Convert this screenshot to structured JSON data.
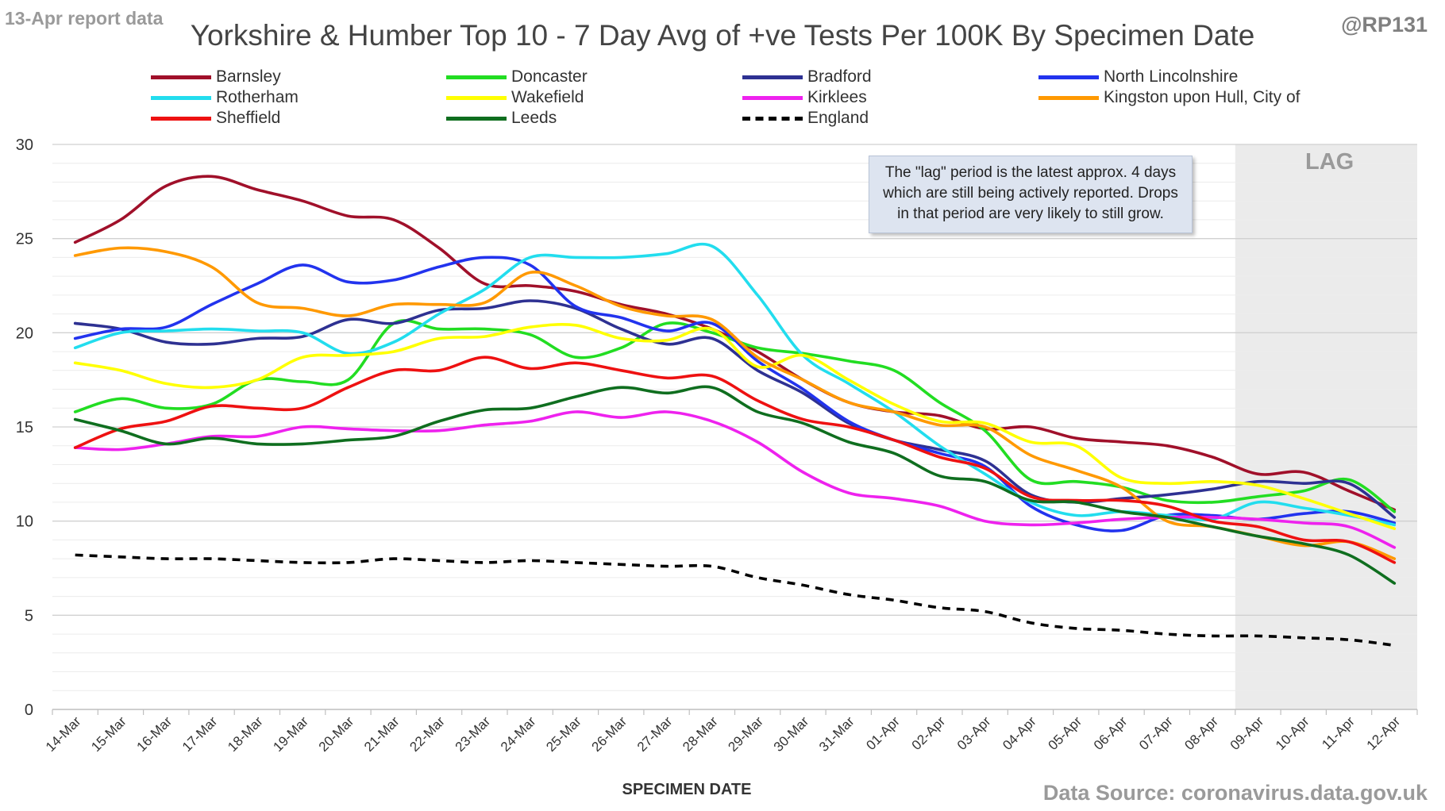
{
  "header": {
    "report_tag": "13-Apr report data",
    "title": "Yorkshire & Humber Top 10 - 7 Day Avg of +ve Tests Per 100K By Specimen Date",
    "author": "@RP131"
  },
  "footer": {
    "source": "Data Source: coronavirus.data.gov.uk"
  },
  "annotation": {
    "note": "The \"lag\" period is the latest approx. 4 days which are still being actively reported. Drops in that period are very likely to still grow.",
    "lag_label": "LAG"
  },
  "colors": {
    "background": "#ffffff",
    "grid": "#d9d9d9",
    "lag_region": "#ebebeb",
    "axis_text": "#333333"
  },
  "chart_data": {
    "type": "line",
    "title": "Yorkshire & Humber Top 10 - 7 Day Avg of +ve Tests Per 100K By Specimen Date",
    "xlabel": "SPECIMEN DATE",
    "ylabel": "",
    "ylim": [
      0,
      30
    ],
    "yticks": [
      0,
      5,
      10,
      15,
      20,
      25,
      30
    ],
    "grid": true,
    "legend_position": "top",
    "lag_region": [
      "09-Apr",
      "12-Apr"
    ],
    "categories": [
      "14-Mar",
      "15-Mar",
      "16-Mar",
      "17-Mar",
      "18-Mar",
      "19-Mar",
      "20-Mar",
      "21-Mar",
      "22-Mar",
      "23-Mar",
      "24-Mar",
      "25-Mar",
      "26-Mar",
      "27-Mar",
      "28-Mar",
      "29-Mar",
      "30-Mar",
      "31-Mar",
      "01-Apr",
      "02-Apr",
      "03-Apr",
      "04-Apr",
      "05-Apr",
      "06-Apr",
      "07-Apr",
      "08-Apr",
      "09-Apr",
      "10-Apr",
      "11-Apr",
      "12-Apr"
    ],
    "series": [
      {
        "name": "Barnsley",
        "color": "#a0102a",
        "dash": false,
        "values": [
          24.8,
          26.0,
          27.8,
          28.3,
          27.6,
          27.0,
          26.2,
          26.0,
          24.5,
          22.6,
          22.5,
          22.2,
          21.5,
          21.0,
          20.2,
          19.0,
          17.5,
          16.3,
          15.8,
          15.6,
          14.9,
          15.0,
          14.4,
          14.2,
          14.0,
          13.4,
          12.5,
          12.6,
          11.6,
          10.6
        ]
      },
      {
        "name": "Doncaster",
        "color": "#22dd22",
        "dash": false,
        "values": [
          15.8,
          16.5,
          16.0,
          16.2,
          17.5,
          17.4,
          17.5,
          20.5,
          20.2,
          20.2,
          19.9,
          18.7,
          19.2,
          20.5,
          20.0,
          19.2,
          18.9,
          18.5,
          18.0,
          16.3,
          14.8,
          12.2,
          12.1,
          11.8,
          11.1,
          11.0,
          11.3,
          11.6,
          12.2,
          10.5
        ]
      },
      {
        "name": "Bradford",
        "color": "#2e3192",
        "dash": false,
        "values": [
          20.5,
          20.2,
          19.5,
          19.4,
          19.7,
          19.8,
          20.7,
          20.5,
          21.2,
          21.3,
          21.7,
          21.3,
          20.2,
          19.4,
          19.7,
          18.0,
          16.8,
          15.2,
          14.3,
          13.8,
          13.2,
          11.4,
          11.0,
          11.2,
          11.4,
          11.7,
          12.1,
          12.0,
          12.0,
          10.2
        ]
      },
      {
        "name": "North Lincolnshire",
        "color": "#2233ee",
        "dash": false,
        "values": [
          19.7,
          20.2,
          20.3,
          21.5,
          22.6,
          23.6,
          22.7,
          22.8,
          23.5,
          24.0,
          23.6,
          21.4,
          20.8,
          20.1,
          20.5,
          18.5,
          17.0,
          15.3,
          14.3,
          13.6,
          12.9,
          10.8,
          9.8,
          9.5,
          10.3,
          10.3,
          10.1,
          10.4,
          10.5,
          9.9
        ]
      },
      {
        "name": "Rotherham",
        "color": "#22ddee",
        "dash": false,
        "values": [
          19.2,
          20.0,
          20.1,
          20.2,
          20.1,
          20.0,
          18.9,
          19.5,
          21.0,
          22.3,
          24.0,
          24.0,
          24.0,
          24.2,
          24.6,
          22.0,
          18.8,
          17.3,
          15.8,
          14.0,
          12.5,
          11.0,
          10.3,
          10.5,
          10.3,
          10.1,
          11.0,
          10.7,
          10.3,
          9.8
        ]
      },
      {
        "name": "Wakefield",
        "color": "#ffff00",
        "dash": false,
        "values": [
          18.4,
          18.0,
          17.3,
          17.1,
          17.5,
          18.7,
          18.8,
          19.0,
          19.7,
          19.8,
          20.3,
          20.4,
          19.7,
          19.6,
          20.2,
          18.2,
          18.8,
          17.5,
          16.2,
          15.3,
          15.2,
          14.2,
          14.0,
          12.3,
          12.0,
          12.1,
          11.9,
          11.2,
          10.4,
          9.6
        ]
      },
      {
        "name": "Kirklees",
        "color": "#ee22ee",
        "dash": false,
        "values": [
          13.9,
          13.8,
          14.1,
          14.5,
          14.5,
          15.0,
          14.9,
          14.8,
          14.8,
          15.1,
          15.3,
          15.8,
          15.5,
          15.8,
          15.3,
          14.2,
          12.6,
          11.5,
          11.2,
          10.8,
          10.0,
          9.8,
          9.9,
          10.1,
          10.2,
          10.2,
          10.1,
          9.9,
          9.7,
          8.6
        ]
      },
      {
        "name": "Kingston upon Hull, City of",
        "color": "#ff9900",
        "dash": false,
        "values": [
          24.1,
          24.5,
          24.3,
          23.5,
          21.6,
          21.3,
          20.9,
          21.5,
          21.5,
          21.6,
          23.2,
          22.5,
          21.4,
          20.9,
          20.7,
          18.7,
          17.5,
          16.3,
          15.8,
          15.1,
          15.0,
          13.5,
          12.7,
          11.8,
          10.0,
          9.7,
          9.2,
          8.7,
          8.9,
          8.0
        ]
      },
      {
        "name": "Sheffield",
        "color": "#ee1111",
        "dash": false,
        "values": [
          13.9,
          14.9,
          15.3,
          16.1,
          16.0,
          16.0,
          17.1,
          18.0,
          18.0,
          18.7,
          18.1,
          18.4,
          18.0,
          17.6,
          17.7,
          16.4,
          15.4,
          15.0,
          14.3,
          13.4,
          12.8,
          11.3,
          11.1,
          11.1,
          10.8,
          10.0,
          9.7,
          9.0,
          8.9,
          7.8
        ]
      },
      {
        "name": "Leeds",
        "color": "#0f6e1f",
        "dash": false,
        "values": [
          15.4,
          14.8,
          14.1,
          14.4,
          14.1,
          14.1,
          14.3,
          14.5,
          15.3,
          15.9,
          16.0,
          16.6,
          17.1,
          16.8,
          17.1,
          15.8,
          15.2,
          14.2,
          13.6,
          12.4,
          12.1,
          11.1,
          11.0,
          10.5,
          10.2,
          9.7,
          9.2,
          8.8,
          8.2,
          6.7
        ]
      },
      {
        "name": "England",
        "color": "#000000",
        "dash": true,
        "values": [
          8.2,
          8.1,
          8.0,
          8.0,
          7.9,
          7.8,
          7.8,
          8.0,
          7.9,
          7.8,
          7.9,
          7.8,
          7.7,
          7.6,
          7.6,
          7.0,
          6.6,
          6.1,
          5.8,
          5.4,
          5.2,
          4.6,
          4.3,
          4.2,
          4.0,
          3.9,
          3.9,
          3.8,
          3.7,
          3.4
        ]
      }
    ]
  }
}
